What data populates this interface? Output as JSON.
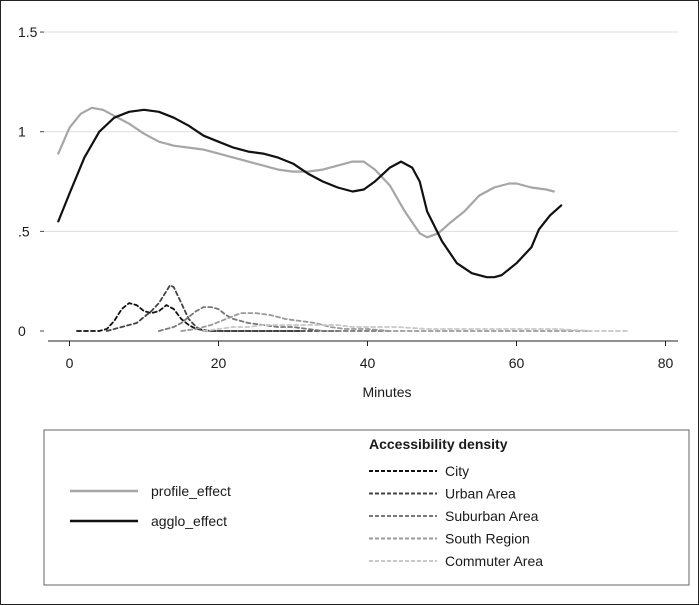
{
  "chart_data": {
    "type": "line",
    "title": "",
    "xlabel": "Minutes",
    "ylabel": "",
    "xlim": [
      -2,
      82
    ],
    "ylim": [
      0,
      1.5
    ],
    "x_ticks": [
      0,
      20,
      40,
      60,
      80
    ],
    "y_ticks": [
      0,
      0.5,
      1,
      1.5
    ],
    "x_tick_labels": [
      "0",
      "20",
      "40",
      "60",
      "80"
    ],
    "y_tick_labels": [
      "0",
      ".5",
      "1",
      "1.5"
    ],
    "grid": "horizontal",
    "legend_position": "bottom",
    "legend_heading": "Accessibility density",
    "series": [
      {
        "name": "profile_effect",
        "color": "#a6a6a6",
        "style": "solid",
        "points": [
          [
            -1.5,
            0.89
          ],
          [
            0,
            1.02
          ],
          [
            1.5,
            1.09
          ],
          [
            3,
            1.12
          ],
          [
            4.5,
            1.11
          ],
          [
            6,
            1.08
          ],
          [
            8,
            1.04
          ],
          [
            10,
            0.99
          ],
          [
            12,
            0.95
          ],
          [
            14,
            0.93
          ],
          [
            16,
            0.92
          ],
          [
            18,
            0.91
          ],
          [
            20,
            0.89
          ],
          [
            22,
            0.87
          ],
          [
            24,
            0.85
          ],
          [
            26,
            0.83
          ],
          [
            28,
            0.81
          ],
          [
            30,
            0.8
          ],
          [
            32,
            0.8
          ],
          [
            34,
            0.81
          ],
          [
            36,
            0.83
          ],
          [
            38,
            0.85
          ],
          [
            39.5,
            0.85
          ],
          [
            41,
            0.81
          ],
          [
            43,
            0.73
          ],
          [
            45,
            0.6
          ],
          [
            47,
            0.49
          ],
          [
            48,
            0.47
          ],
          [
            49.5,
            0.49
          ],
          [
            51,
            0.54
          ],
          [
            53,
            0.6
          ],
          [
            55,
            0.68
          ],
          [
            57,
            0.72
          ],
          [
            59,
            0.74
          ],
          [
            60,
            0.74
          ],
          [
            62,
            0.72
          ],
          [
            64,
            0.71
          ],
          [
            65,
            0.7
          ]
        ]
      },
      {
        "name": "agglo_effect",
        "color": "#111111",
        "style": "solid",
        "points": [
          [
            -1.5,
            0.55
          ],
          [
            0,
            0.69
          ],
          [
            2,
            0.87
          ],
          [
            4,
            1.0
          ],
          [
            6,
            1.07
          ],
          [
            8,
            1.1
          ],
          [
            10,
            1.11
          ],
          [
            12,
            1.1
          ],
          [
            14,
            1.07
          ],
          [
            16,
            1.03
          ],
          [
            18,
            0.98
          ],
          [
            20,
            0.95
          ],
          [
            22,
            0.92
          ],
          [
            24,
            0.9
          ],
          [
            26,
            0.89
          ],
          [
            28,
            0.87
          ],
          [
            30,
            0.84
          ],
          [
            32,
            0.79
          ],
          [
            34,
            0.75
          ],
          [
            36,
            0.72
          ],
          [
            38,
            0.7
          ],
          [
            39.5,
            0.71
          ],
          [
            41,
            0.75
          ],
          [
            43,
            0.82
          ],
          [
            44.5,
            0.85
          ],
          [
            46,
            0.82
          ],
          [
            47,
            0.75
          ],
          [
            48,
            0.6
          ],
          [
            50,
            0.45
          ],
          [
            52,
            0.34
          ],
          [
            54,
            0.29
          ],
          [
            56,
            0.27
          ],
          [
            57,
            0.27
          ],
          [
            58,
            0.28
          ],
          [
            60,
            0.34
          ],
          [
            62,
            0.42
          ],
          [
            63,
            0.51
          ],
          [
            64.5,
            0.58
          ],
          [
            66,
            0.63
          ]
        ]
      },
      {
        "name": "City",
        "color": "#111111",
        "style": "dashed",
        "points": [
          [
            1,
            0.0
          ],
          [
            4,
            0.0
          ],
          [
            5,
            0.01
          ],
          [
            6,
            0.05
          ],
          [
            7,
            0.11
          ],
          [
            8,
            0.14
          ],
          [
            9,
            0.13
          ],
          [
            10,
            0.1
          ],
          [
            11,
            0.09
          ],
          [
            12,
            0.1
          ],
          [
            13,
            0.13
          ],
          [
            14,
            0.11
          ],
          [
            15,
            0.06
          ],
          [
            16,
            0.03
          ],
          [
            17,
            0.01
          ],
          [
            19,
            0.0
          ],
          [
            31,
            0.0
          ]
        ]
      },
      {
        "name": "Urban Area",
        "color": "#444444",
        "style": "dashed",
        "points": [
          [
            5,
            0.0
          ],
          [
            7,
            0.02
          ],
          [
            9,
            0.04
          ],
          [
            10,
            0.07
          ],
          [
            11,
            0.1
          ],
          [
            12,
            0.14
          ],
          [
            13,
            0.2
          ],
          [
            13.5,
            0.23
          ],
          [
            14,
            0.22
          ],
          [
            15,
            0.14
          ],
          [
            16,
            0.06
          ],
          [
            17,
            0.02
          ],
          [
            18,
            0.0
          ],
          [
            36,
            0.0
          ]
        ]
      },
      {
        "name": "Suburban Area",
        "color": "#777777",
        "style": "dashed",
        "points": [
          [
            12,
            0.0
          ],
          [
            14,
            0.02
          ],
          [
            15,
            0.04
          ],
          [
            16,
            0.07
          ],
          [
            17,
            0.1
          ],
          [
            18,
            0.12
          ],
          [
            19,
            0.12
          ],
          [
            20,
            0.11
          ],
          [
            21,
            0.08
          ],
          [
            22,
            0.06
          ],
          [
            24,
            0.04
          ],
          [
            26,
            0.03
          ],
          [
            28,
            0.02
          ],
          [
            30,
            0.02
          ],
          [
            32,
            0.01
          ],
          [
            34,
            0.0
          ],
          [
            43,
            0.0
          ]
        ]
      },
      {
        "name": "South Region",
        "color": "#999999",
        "style": "dashed",
        "points": [
          [
            15,
            0.0
          ],
          [
            17,
            0.01
          ],
          [
            19,
            0.03
          ],
          [
            21,
            0.06
          ],
          [
            23,
            0.09
          ],
          [
            25,
            0.09
          ],
          [
            27,
            0.08
          ],
          [
            29,
            0.06
          ],
          [
            31,
            0.05
          ],
          [
            33,
            0.04
          ],
          [
            35,
            0.02
          ],
          [
            37,
            0.01
          ],
          [
            40,
            0.01
          ],
          [
            43,
            0.0
          ],
          [
            70,
            0.0
          ]
        ]
      },
      {
        "name": "Commuter Area",
        "color": "#c8c8c8",
        "style": "dashed",
        "points": [
          [
            18,
            0.0
          ],
          [
            20,
            0.01
          ],
          [
            22,
            0.02
          ],
          [
            24,
            0.02
          ],
          [
            26,
            0.03
          ],
          [
            28,
            0.03
          ],
          [
            30,
            0.03
          ],
          [
            32,
            0.03
          ],
          [
            34,
            0.03
          ],
          [
            36,
            0.03
          ],
          [
            38,
            0.02
          ],
          [
            40,
            0.02
          ],
          [
            44,
            0.02
          ],
          [
            48,
            0.01
          ],
          [
            55,
            0.01
          ],
          [
            65,
            0.01
          ],
          [
            70,
            0.0
          ],
          [
            75,
            0.0
          ]
        ]
      }
    ]
  }
}
